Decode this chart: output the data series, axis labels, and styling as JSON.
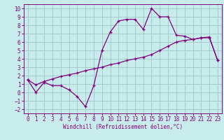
{
  "xlabel": "Windchill (Refroidissement éolien,°C)",
  "background_color": "#c8ecec",
  "grid_color": "#a0c8c8",
  "line_color": "#800080",
  "xlim": [
    -0.5,
    23.5
  ],
  "ylim": [
    -2.5,
    10.5
  ],
  "xticks": [
    0,
    1,
    2,
    3,
    4,
    5,
    6,
    7,
    8,
    9,
    10,
    11,
    12,
    13,
    14,
    15,
    16,
    17,
    18,
    19,
    20,
    21,
    22,
    23
  ],
  "yticks": [
    -2,
    -1,
    0,
    1,
    2,
    3,
    4,
    5,
    6,
    7,
    8,
    9,
    10
  ],
  "line1_x": [
    0,
    1,
    2,
    3,
    4,
    5,
    6,
    7,
    8,
    9,
    10,
    11,
    12,
    13,
    14,
    15,
    16,
    17,
    18,
    19,
    20,
    21,
    22,
    23
  ],
  "line1_y": [
    1.5,
    0.0,
    1.2,
    0.8,
    0.8,
    0.3,
    -0.5,
    -1.7,
    0.8,
    5.0,
    7.2,
    8.5,
    8.7,
    8.7,
    7.5,
    10.0,
    9.0,
    9.0,
    6.8,
    6.7,
    6.3,
    6.5,
    6.5,
    3.8
  ],
  "line2_x": [
    0,
    1,
    2,
    3,
    4,
    5,
    6,
    7,
    8,
    9,
    10,
    11,
    12,
    13,
    14,
    15,
    16,
    17,
    18,
    19,
    20,
    21,
    22,
    23
  ],
  "line2_y": [
    1.5,
    0.9,
    1.3,
    1.6,
    1.9,
    2.1,
    2.3,
    2.6,
    2.8,
    3.0,
    3.3,
    3.5,
    3.8,
    4.0,
    4.2,
    4.5,
    5.0,
    5.5,
    6.0,
    6.2,
    6.3,
    6.5,
    6.6,
    3.8
  ],
  "tick_fontsize": 5.5,
  "xlabel_fontsize": 5.5,
  "marker_size": 3,
  "line_width": 0.9
}
